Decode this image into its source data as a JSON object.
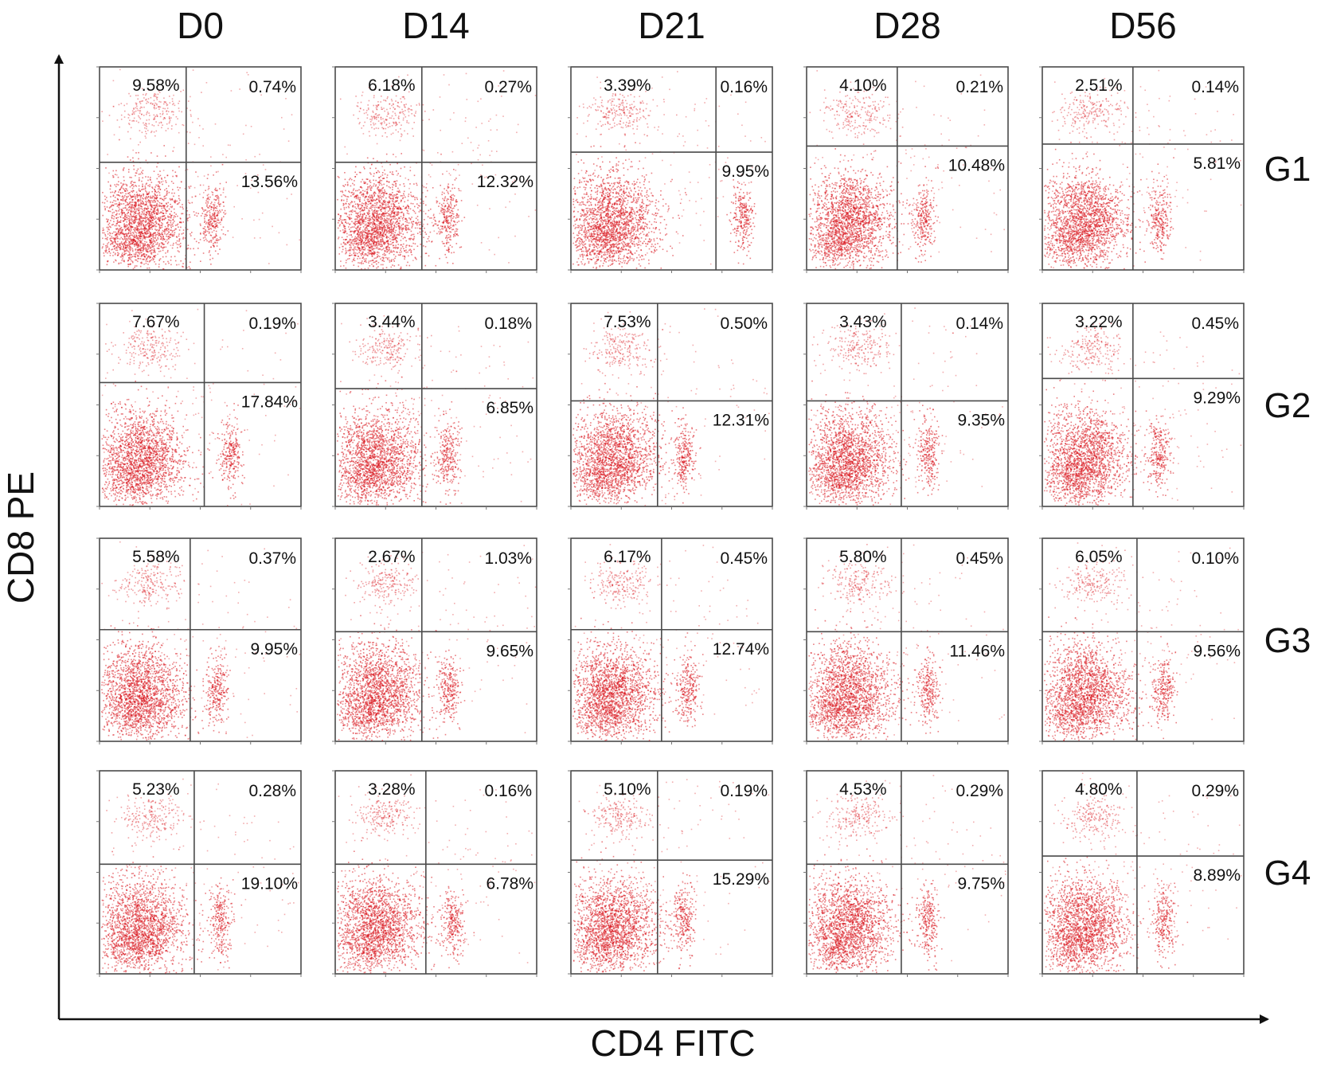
{
  "chart_data": {
    "type": "scatter",
    "description_type": "flow cytometry quadrant dot plots",
    "columns": [
      "D0",
      "D14",
      "D21",
      "D28",
      "D56"
    ],
    "rows": [
      "G1",
      "G2",
      "G3",
      "G4"
    ],
    "xlabel": "CD4 FITC",
    "ylabel": "CD8 PE",
    "dot_color": "#d9141b",
    "quadrants": {
      "G1": {
        "D0": {
          "upper_left": "9.58%",
          "upper_right": "0.74%",
          "lower_right": "13.56%"
        },
        "D14": {
          "upper_left": "6.18%",
          "upper_right": "0.27%",
          "lower_right": "12.32%"
        },
        "D21": {
          "upper_left": "3.39%",
          "upper_right": "0.16%",
          "lower_right": "9.95%"
        },
        "D28": {
          "upper_left": "4.10%",
          "upper_right": "0.21%",
          "lower_right": "10.48%"
        },
        "D56": {
          "upper_left": "2.51%",
          "upper_right": "0.14%",
          "lower_right": "5.81%"
        }
      },
      "G2": {
        "D0": {
          "upper_left": "7.67%",
          "upper_right": "0.19%",
          "lower_right": "17.84%"
        },
        "D14": {
          "upper_left": "3.44%",
          "upper_right": "0.18%",
          "lower_right": "6.85%"
        },
        "D21": {
          "upper_left": "7.53%",
          "upper_right": "0.50%",
          "lower_right": "12.31%"
        },
        "D28": {
          "upper_left": "3.43%",
          "upper_right": "0.14%",
          "lower_right": "9.35%"
        },
        "D56": {
          "upper_left": "3.22%",
          "upper_right": "0.45%",
          "lower_right": "9.29%"
        }
      },
      "G3": {
        "D0": {
          "upper_left": "5.58%",
          "upper_right": "0.37%",
          "lower_right": "9.95%"
        },
        "D14": {
          "upper_left": "2.67%",
          "upper_right": "1.03%",
          "lower_right": "9.65%"
        },
        "D21": {
          "upper_left": "6.17%",
          "upper_right": "0.45%",
          "lower_right": "12.74%"
        },
        "D28": {
          "upper_left": "5.80%",
          "upper_right": "0.45%",
          "lower_right": "11.46%"
        },
        "D56": {
          "upper_left": "6.05%",
          "upper_right": "0.10%",
          "lower_right": "9.56%"
        }
      },
      "G4": {
        "D0": {
          "upper_left": "5.23%",
          "upper_right": "0.28%",
          "lower_right": "19.10%"
        },
        "D14": {
          "upper_left": "3.28%",
          "upper_right": "0.16%",
          "lower_right": "6.78%"
        },
        "D21": {
          "upper_left": "5.10%",
          "upper_right": "0.19%",
          "lower_right": "15.29%"
        },
        "D28": {
          "upper_left": "4.53%",
          "upper_right": "0.29%",
          "lower_right": "9.75%"
        },
        "D56": {
          "upper_left": "4.80%",
          "upper_right": "0.29%",
          "lower_right": "8.89%"
        }
      }
    }
  }
}
